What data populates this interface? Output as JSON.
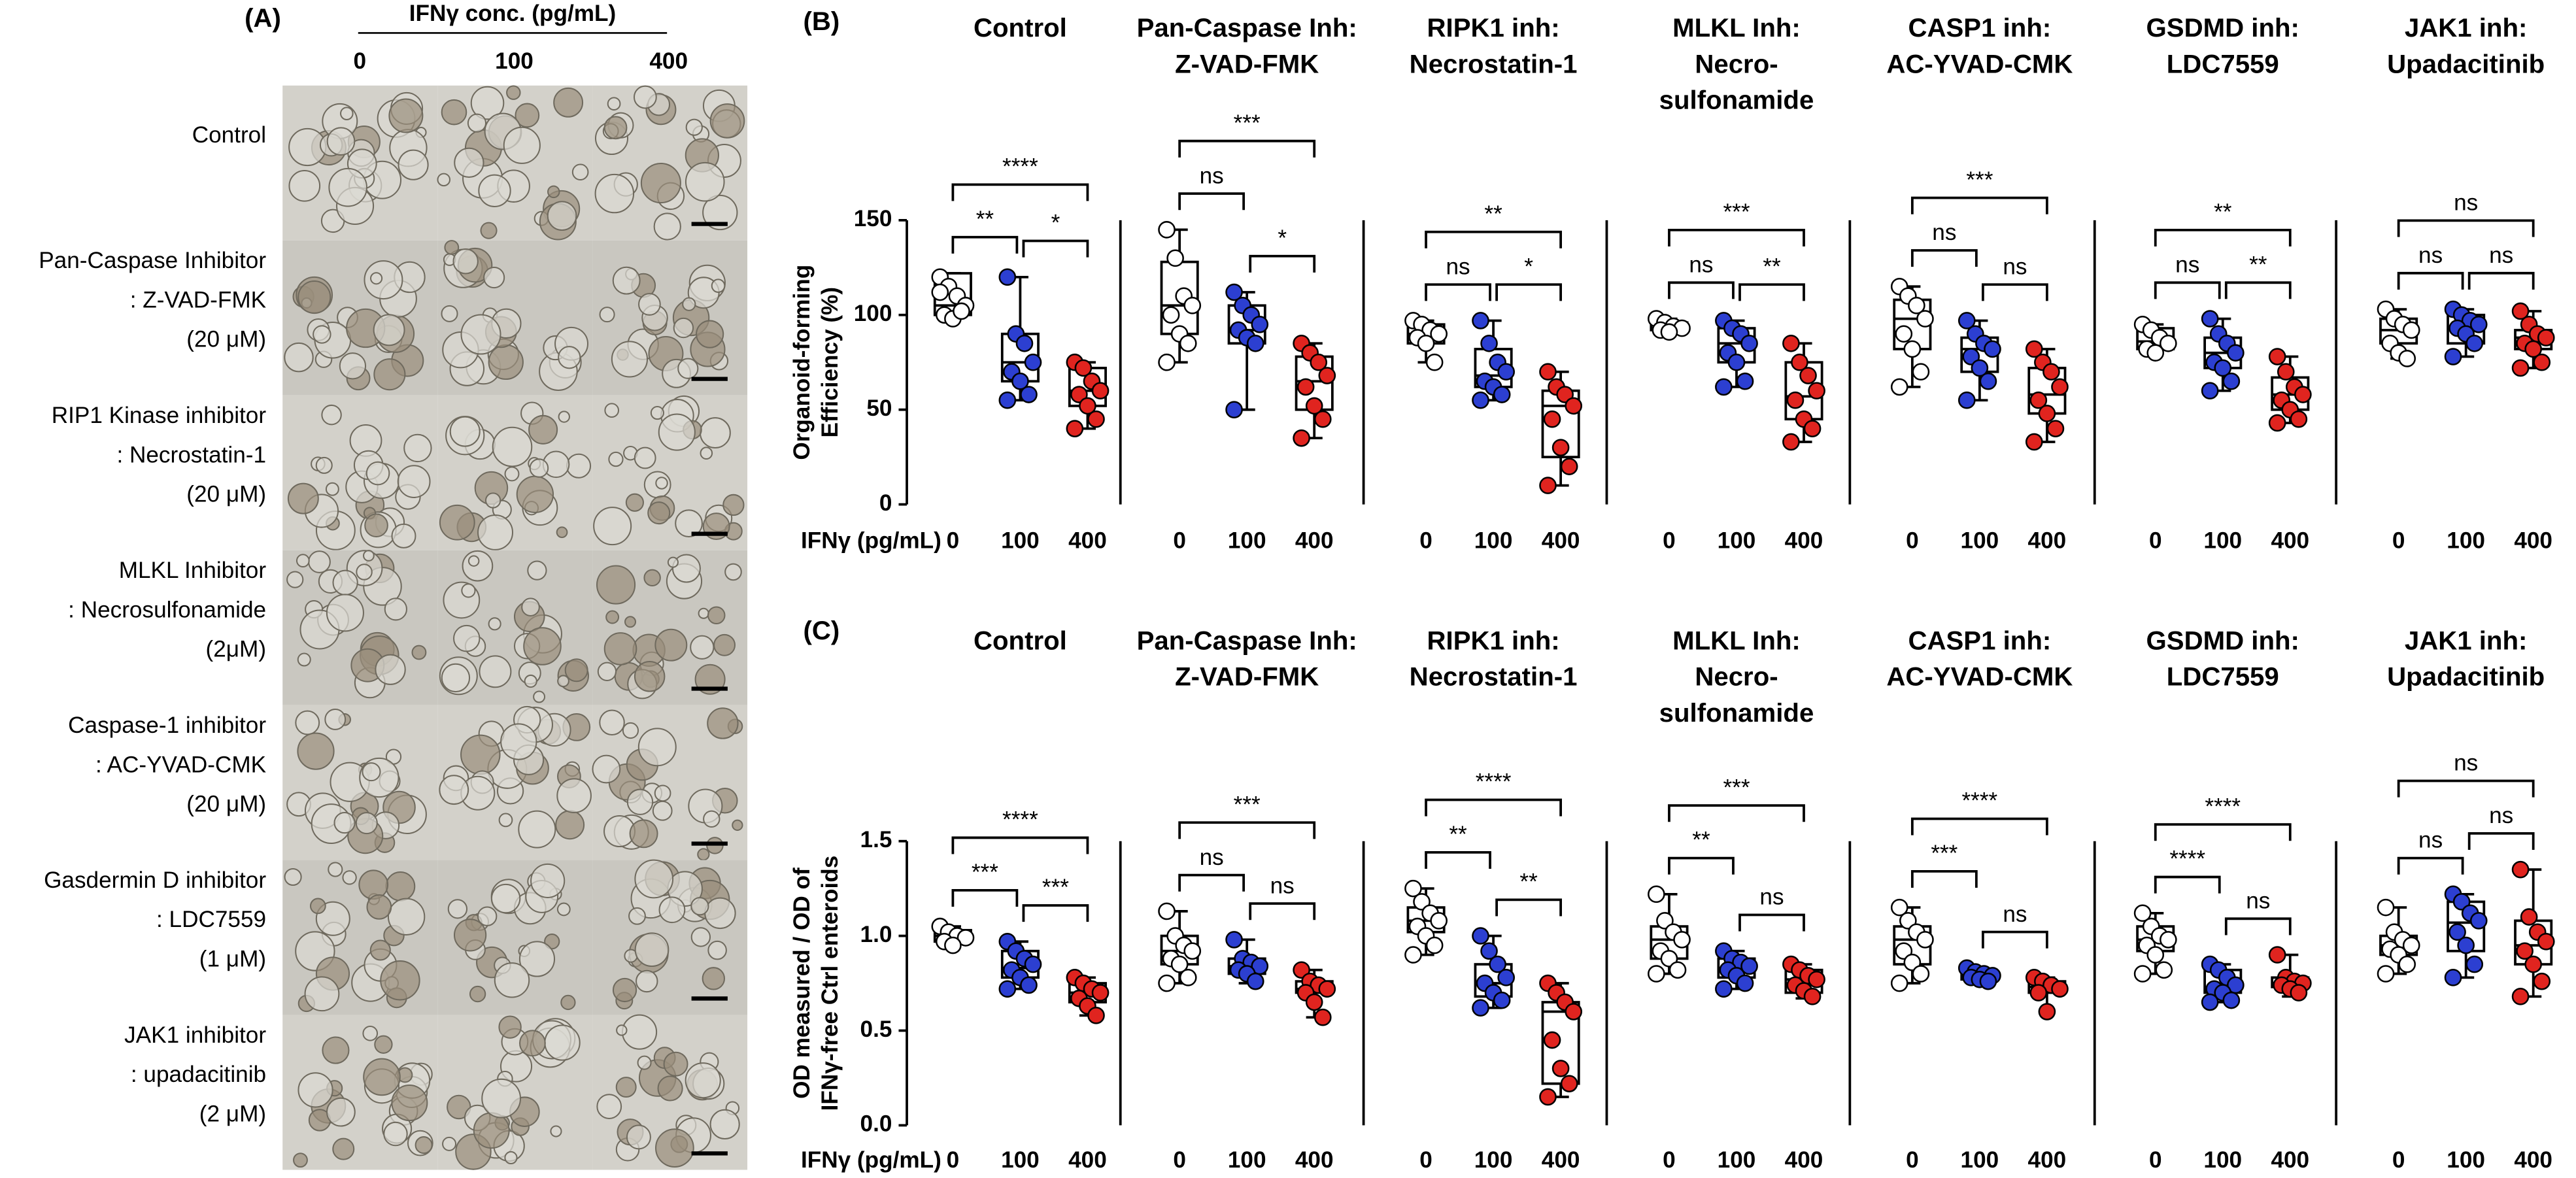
{
  "panel_a": {
    "label": "(A)",
    "header": "IFNγ conc. (pg/mL)",
    "columns": [
      "0",
      "100",
      "400"
    ],
    "rows": [
      [
        "Control"
      ],
      [
        "Pan-Caspase Inhibitor",
        ": Z-VAD-FMK",
        "(20 μM)"
      ],
      [
        "RIP1 Kinase inhibitor",
        ": Necrostatin-1",
        "(20 μM)"
      ],
      [
        "MLKL Inhibitor",
        ": Necrosulfonamide",
        "(2μM)"
      ],
      [
        "Caspase-1 inhibitor",
        ": AC-YVAD-CMK",
        "(20 μM)"
      ],
      [
        "Gasdermin D inhibitor",
        ": LDC7559",
        "(1 μM)"
      ],
      [
        "JAK1 inhibitor",
        ": upadacitinib",
        "(2 μM)"
      ]
    ]
  },
  "chart_data": [
    {
      "type": "box",
      "label": "(B)",
      "ylabel": [
        "Organoid-forming",
        "Efficiency (%)"
      ],
      "xlabel": "IFNγ (pg/mL)",
      "categories": [
        "0",
        "100",
        "400"
      ],
      "colors": [
        "#ffffff",
        "#2c3fd1",
        "#e0241f"
      ],
      "ylim": [
        0,
        150
      ],
      "yticks": [
        0,
        50,
        100,
        150
      ],
      "panels": [
        {
          "title": [
            "Control"
          ],
          "boxes": [
            [
              97,
              100,
              105,
              122,
              122
            ],
            [
              55,
              65,
              75,
              90,
              120
            ],
            [
              40,
              52,
              60,
              72,
              75
            ]
          ],
          "points": [
            [
              120,
              115,
              110,
              105,
              100,
              98,
              102,
              112
            ],
            [
              120,
              90,
              85,
              75,
              70,
              65,
              58,
              55
            ],
            [
              75,
              72,
              65,
              60,
              58,
              52,
              45,
              40
            ]
          ],
          "significance": [
            "**",
            "*",
            "****"
          ]
        },
        {
          "title": [
            "Pan-Caspase Inh:",
            "Z-VAD-FMK"
          ],
          "boxes": [
            [
              75,
              90,
              105,
              128,
              145
            ],
            [
              50,
              85,
              92,
              105,
              112
            ],
            [
              35,
              50,
              65,
              78,
              85
            ]
          ],
          "points": [
            [
              145,
              130,
              110,
              105,
              100,
              90,
              85,
              75
            ],
            [
              112,
              105,
              100,
              95,
              92,
              88,
              85,
              50
            ],
            [
              85,
              80,
              75,
              68,
              62,
              52,
              45,
              35
            ]
          ],
          "significance": [
            "ns",
            "*",
            "***"
          ]
        },
        {
          "title": [
            "RIPK1 inh:",
            "Necrostatin-1"
          ],
          "boxes": [
            [
              75,
              85,
              90,
              95,
              97
            ],
            [
              55,
              62,
              68,
              82,
              97
            ],
            [
              10,
              25,
              52,
              60,
              70
            ]
          ],
          "points": [
            [
              97,
              95,
              92,
              90,
              88,
              85,
              75
            ],
            [
              97,
              85,
              75,
              70,
              65,
              62,
              58,
              55
            ],
            [
              70,
              62,
              58,
              52,
              45,
              30,
              20,
              10
            ]
          ],
          "significance": [
            "ns",
            "*",
            "**"
          ]
        },
        {
          "title": [
            "MLKL Inh:",
            "Necro-",
            "sulfonamide"
          ],
          "boxes": [
            [
              90,
              92,
              93,
              96,
              98
            ],
            [
              62,
              75,
              85,
              93,
              97
            ],
            [
              33,
              45,
              57,
              75,
              85
            ]
          ],
          "points": [
            [
              98,
              96,
              94,
              93,
              92,
              91
            ],
            [
              97,
              93,
              90,
              85,
              80,
              75,
              65,
              62
            ],
            [
              85,
              75,
              68,
              60,
              55,
              45,
              40,
              33
            ]
          ],
          "significance": [
            "ns",
            "**",
            "***"
          ]
        },
        {
          "title": [
            "CASP1 inh:",
            "AC-YVAD-CMK"
          ],
          "boxes": [
            [
              62,
              82,
              98,
              108,
              115
            ],
            [
              55,
              70,
              82,
              88,
              97
            ],
            [
              33,
              48,
              58,
              72,
              82
            ]
          ],
          "points": [
            [
              115,
              110,
              105,
              98,
              90,
              82,
              70,
              62
            ],
            [
              97,
              90,
              85,
              82,
              78,
              72,
              65,
              55
            ],
            [
              82,
              75,
              70,
              62,
              55,
              48,
              40,
              33
            ]
          ],
          "significance": [
            "ns",
            "ns",
            "***"
          ]
        },
        {
          "title": [
            "GSDMD inh:",
            "LDC7559"
          ],
          "boxes": [
            [
              80,
              82,
              86,
              93,
              95
            ],
            [
              60,
              72,
              80,
              88,
              98
            ],
            [
              43,
              50,
              58,
              67,
              78
            ]
          ],
          "points": [
            [
              95,
              92,
              88,
              85,
              82,
              80
            ],
            [
              98,
              90,
              85,
              80,
              75,
              72,
              65,
              60
            ],
            [
              78,
              70,
              62,
              58,
              55,
              50,
              45,
              43
            ]
          ],
          "significance": [
            "ns",
            "**",
            "**"
          ]
        },
        {
          "title": [
            "JAK1 inh:",
            "Upadacitinib"
          ],
          "boxes": [
            [
              77,
              85,
              92,
              98,
              103
            ],
            [
              78,
              85,
              93,
              100,
              103
            ],
            [
              72,
              82,
              88,
              92,
              102
            ]
          ],
          "points": [
            [
              103,
              98,
              95,
              92,
              85,
              80,
              77
            ],
            [
              103,
              100,
              97,
              95,
              93,
              90,
              85,
              78
            ],
            [
              102,
              95,
              90,
              88,
              85,
              82,
              75,
              72
            ]
          ],
          "significance": [
            "ns",
            "ns",
            "ns"
          ]
        }
      ]
    },
    {
      "type": "box",
      "label": "(C)",
      "ylabel": [
        "OD measured / OD of",
        "IFNγ-free Ctrl enteroids"
      ],
      "xlabel": "IFNγ (pg/mL)",
      "categories": [
        "0",
        "100",
        "400"
      ],
      "colors": [
        "#ffffff",
        "#2c3fd1",
        "#e0241f"
      ],
      "ylim": [
        0,
        1.5
      ],
      "yticks": [
        {
          "value": 0,
          "label": "0.0"
        },
        0.5,
        {
          "value": 1,
          "label": "1.0"
        },
        1.5
      ],
      "panels": [
        {
          "title": [
            "Control"
          ],
          "boxes": [
            [
              0.95,
              0.97,
              1.0,
              1.03,
              1.05
            ],
            [
              0.72,
              0.78,
              0.83,
              0.92,
              0.97
            ],
            [
              0.58,
              0.65,
              0.7,
              0.75,
              0.78
            ]
          ],
          "points": [
            [
              1.05,
              1.02,
              1.0,
              0.99,
              0.97,
              0.95
            ],
            [
              0.97,
              0.92,
              0.88,
              0.85,
              0.82,
              0.78,
              0.74,
              0.72
            ],
            [
              0.78,
              0.75,
              0.72,
              0.7,
              0.67,
              0.63,
              0.58
            ]
          ],
          "significance": [
            "***",
            "***",
            "****"
          ]
        },
        {
          "title": [
            "Pan-Caspase Inh:",
            "Z-VAD-FMK"
          ],
          "boxes": [
            [
              0.75,
              0.85,
              0.92,
              1.0,
              1.13
            ],
            [
              0.75,
              0.8,
              0.84,
              0.88,
              0.98
            ],
            [
              0.57,
              0.7,
              0.72,
              0.76,
              0.82
            ]
          ],
          "points": [
            [
              1.13,
              1.0,
              0.95,
              0.92,
              0.88,
              0.85,
              0.78,
              0.75
            ],
            [
              0.98,
              0.88,
              0.86,
              0.84,
              0.82,
              0.8,
              0.76
            ],
            [
              0.82,
              0.76,
              0.74,
              0.72,
              0.7,
              0.65,
              0.57
            ]
          ],
          "significance": [
            "ns",
            "ns",
            "***"
          ]
        },
        {
          "title": [
            "RIPK1 inh:",
            "Necrostatin-1"
          ],
          "boxes": [
            [
              0.9,
              1.02,
              1.08,
              1.15,
              1.25
            ],
            [
              0.62,
              0.68,
              0.75,
              0.85,
              1.0
            ],
            [
              0.15,
              0.22,
              0.6,
              0.65,
              0.75
            ]
          ],
          "points": [
            [
              1.25,
              1.18,
              1.12,
              1.08,
              1.05,
              1.0,
              0.95,
              0.9
            ],
            [
              1.0,
              0.92,
              0.85,
              0.78,
              0.75,
              0.7,
              0.66,
              0.62
            ],
            [
              0.75,
              0.7,
              0.65,
              0.6,
              0.45,
              0.3,
              0.22,
              0.15
            ]
          ],
          "significance": [
            "**",
            "**",
            "****"
          ]
        },
        {
          "title": [
            "MLKL Inh:",
            "Necro-",
            "sulfonamide"
          ],
          "boxes": [
            [
              0.8,
              0.88,
              0.98,
              1.05,
              1.22
            ],
            [
              0.72,
              0.78,
              0.83,
              0.88,
              0.92
            ],
            [
              0.67,
              0.7,
              0.77,
              0.82,
              0.85
            ]
          ],
          "points": [
            [
              1.22,
              1.08,
              1.02,
              0.98,
              0.92,
              0.88,
              0.82,
              0.8
            ],
            [
              0.92,
              0.88,
              0.86,
              0.84,
              0.82,
              0.79,
              0.75,
              0.72
            ],
            [
              0.85,
              0.82,
              0.79,
              0.77,
              0.74,
              0.71,
              0.68
            ]
          ],
          "significance": [
            "**",
            "ns",
            "***"
          ]
        },
        {
          "title": [
            "CASP1 inh:",
            "AC-YVAD-CMK"
          ],
          "boxes": [
            [
              0.75,
              0.85,
              0.98,
              1.05,
              1.15
            ],
            [
              0.75,
              0.77,
              0.79,
              0.81,
              0.83
            ],
            [
              0.6,
              0.7,
              0.73,
              0.76,
              0.78
            ]
          ],
          "points": [
            [
              1.15,
              1.08,
              1.02,
              0.98,
              0.92,
              0.86,
              0.8,
              0.75
            ],
            [
              0.83,
              0.81,
              0.8,
              0.79,
              0.78,
              0.77,
              0.76
            ],
            [
              0.78,
              0.76,
              0.74,
              0.72,
              0.7,
              0.6
            ]
          ],
          "significance": [
            "***",
            "ns",
            "****"
          ]
        },
        {
          "title": [
            "GSDMD inh:",
            "LDC7559"
          ],
          "boxes": [
            [
              0.8,
              0.92,
              0.98,
              1.05,
              1.12
            ],
            [
              0.65,
              0.7,
              0.72,
              0.82,
              0.85
            ],
            [
              0.68,
              0.73,
              0.75,
              0.78,
              0.9
            ]
          ],
          "points": [
            [
              1.12,
              1.05,
              1.0,
              0.98,
              0.95,
              0.9,
              0.82,
              0.8
            ],
            [
              0.85,
              0.82,
              0.78,
              0.74,
              0.72,
              0.7,
              0.66,
              0.65
            ],
            [
              0.9,
              0.78,
              0.76,
              0.75,
              0.74,
              0.72,
              0.7
            ]
          ],
          "significance": [
            "****",
            "ns",
            "****"
          ]
        },
        {
          "title": [
            "JAK1 inh:",
            "Upadacitinib"
          ],
          "boxes": [
            [
              0.8,
              0.9,
              0.95,
              1.0,
              1.15
            ],
            [
              0.78,
              0.92,
              1.07,
              1.18,
              1.22
            ],
            [
              0.68,
              0.85,
              0.95,
              1.08,
              1.35
            ]
          ],
          "points": [
            [
              1.15,
              1.02,
              0.98,
              0.95,
              0.93,
              0.9,
              0.85,
              0.8
            ],
            [
              1.22,
              1.18,
              1.12,
              1.08,
              1.02,
              0.95,
              0.85,
              0.78
            ],
            [
              1.35,
              1.1,
              1.02,
              0.97,
              0.92,
              0.85,
              0.76,
              0.68
            ]
          ],
          "significance": [
            "ns",
            "ns",
            "ns"
          ]
        }
      ]
    }
  ]
}
